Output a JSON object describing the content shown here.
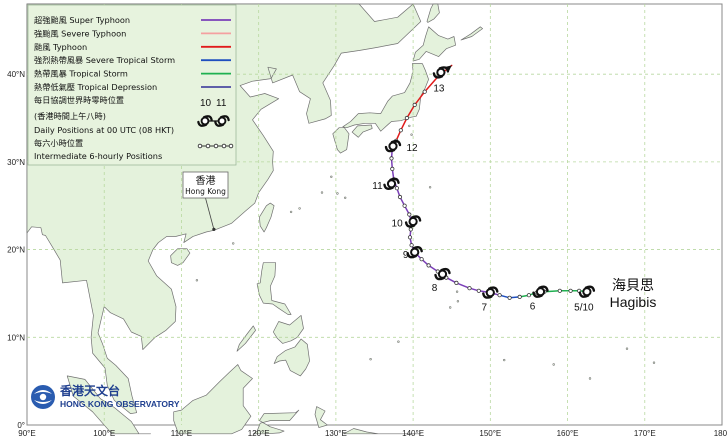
{
  "map": {
    "extent": {
      "lon_min": 90,
      "lon_max": 180,
      "lat_min": 0,
      "lat_max": 48
    },
    "gridline_color": "#b8d8a0",
    "ocean_color": "#ffffff",
    "land_color": "#e4f2dc",
    "coast_color": "#707070",
    "x_ticks": [
      {
        "lon": 90,
        "label": "90°E"
      },
      {
        "lon": 100,
        "label": "100°E"
      },
      {
        "lon": 110,
        "label": "110°E"
      },
      {
        "lon": 120,
        "label": "120°E"
      },
      {
        "lon": 130,
        "label": "130°E"
      },
      {
        "lon": 140,
        "label": "140°E"
      },
      {
        "lon": 150,
        "label": "150°E"
      },
      {
        "lon": 160,
        "label": "160°E"
      },
      {
        "lon": 170,
        "label": "170°E"
      },
      {
        "lon": 180,
        "label": "180°"
      }
    ],
    "y_ticks": [
      {
        "lat": 0,
        "label": "0°"
      },
      {
        "lat": 10,
        "label": "10°N"
      },
      {
        "lat": 20,
        "label": "20°N"
      },
      {
        "lat": 30,
        "label": "30°N"
      },
      {
        "lat": 40,
        "label": "40°N"
      }
    ]
  },
  "legend": {
    "intensity_classes": [
      {
        "label": "超強颱風 Super Typhoon",
        "color": "#7b3fb8"
      },
      {
        "label": "強颱風 Severe Typhoon",
        "color": "#f4a0a0"
      },
      {
        "label": "颱風  Typhoon",
        "color": "#e11b1b"
      },
      {
        "label": "強烈熱帶風暴 Severe Tropical Storm",
        "color": "#1f4fbf"
      },
      {
        "label": "熱帶風暴 Tropical Storm",
        "color": "#1fb050"
      },
      {
        "label": "熱帶低氣壓  Tropical Depression",
        "color": "#4a4aa0"
      }
    ],
    "daily_zh_line1": "每日協調世界時零時位置",
    "daily_zh_line2": "(香港時間上午八時)",
    "daily_en": "Daily Positions at 00 UTC (08 HKT)",
    "sample_day_1": "10",
    "sample_day_2": "11",
    "intermediate_zh": "每六小時位置",
    "intermediate_en": "Intermediate 6-hourly Positions"
  },
  "city": {
    "name_zh": "香港",
    "name_en": "Hong Kong",
    "lon": 114.2,
    "lat": 22.3
  },
  "storm": {
    "name_zh": "海貝思",
    "name_en": "Hagibis"
  },
  "track": [
    {
      "lon": 162.6,
      "lat": 15.2,
      "cls": "ts"
    },
    {
      "lon": 161.5,
      "lat": 15.3,
      "cls": "ts"
    },
    {
      "lon": 160.4,
      "lat": 15.3,
      "cls": "ts"
    },
    {
      "lon": 159.0,
      "lat": 15.3,
      "cls": "ts"
    },
    {
      "lon": 157.0,
      "lat": 15.2,
      "cls": "ts"
    },
    {
      "lon": 156.0,
      "lat": 15.1,
      "cls": "ts"
    },
    {
      "lon": 155.0,
      "lat": 14.8,
      "cls": "ts"
    },
    {
      "lon": 153.8,
      "lat": 14.6,
      "cls": "ts"
    },
    {
      "lon": 152.5,
      "lat": 14.5,
      "cls": "sts"
    },
    {
      "lon": 151.2,
      "lat": 14.8,
      "cls": "sts"
    },
    {
      "lon": 150.0,
      "lat": 15.1,
      "cls": "sty"
    },
    {
      "lon": 148.5,
      "lat": 15.3,
      "cls": "sty"
    },
    {
      "lon": 147.3,
      "lat": 15.6,
      "cls": "sty"
    },
    {
      "lon": 145.6,
      "lat": 16.2,
      "cls": "sty"
    },
    {
      "lon": 144.3,
      "lat": 16.8,
      "cls": "sty"
    },
    {
      "lon": 143.2,
      "lat": 17.5,
      "cls": "sty"
    },
    {
      "lon": 142.0,
      "lat": 18.2,
      "cls": "sty"
    },
    {
      "lon": 141.1,
      "lat": 18.9,
      "cls": "sty"
    },
    {
      "lon": 140.3,
      "lat": 19.6,
      "cls": "sty"
    },
    {
      "lon": 139.8,
      "lat": 20.5,
      "cls": "sty"
    },
    {
      "lon": 139.6,
      "lat": 21.4,
      "cls": "sty"
    },
    {
      "lon": 139.7,
      "lat": 22.3,
      "cls": "sty"
    },
    {
      "lon": 139.8,
      "lat": 23.1,
      "cls": "sty"
    },
    {
      "lon": 139.5,
      "lat": 24.0,
      "cls": "sty"
    },
    {
      "lon": 138.9,
      "lat": 25.0,
      "cls": "sty"
    },
    {
      "lon": 138.3,
      "lat": 26.0,
      "cls": "sty"
    },
    {
      "lon": 137.9,
      "lat": 27.0,
      "cls": "sty"
    },
    {
      "lon": 137.5,
      "lat": 28.0,
      "cls": "sty"
    },
    {
      "lon": 137.3,
      "lat": 29.2,
      "cls": "sty"
    },
    {
      "lon": 137.2,
      "lat": 30.4,
      "cls": "sty"
    },
    {
      "lon": 137.3,
      "lat": 31.5,
      "cls": "sty"
    },
    {
      "lon": 137.8,
      "lat": 32.4,
      "cls": "ty"
    },
    {
      "lon": 138.4,
      "lat": 33.6,
      "cls": "ty"
    },
    {
      "lon": 139.2,
      "lat": 35.0,
      "cls": "ty"
    },
    {
      "lon": 140.2,
      "lat": 36.5,
      "cls": "ty"
    },
    {
      "lon": 141.5,
      "lat": 38.0,
      "cls": "ty"
    },
    {
      "lon": 143.3,
      "lat": 39.8,
      "cls": "ty"
    },
    {
      "lon": 145.0,
      "lat": 41.0,
      "cls": "ty"
    }
  ],
  "daily_positions": [
    {
      "label": "5/10",
      "lon": 162.5,
      "lat": 15.2
    },
    {
      "label": "6",
      "lon": 156.5,
      "lat": 15.2
    },
    {
      "label": "7",
      "lon": 150.0,
      "lat": 15.1
    },
    {
      "label": "8",
      "lon": 143.8,
      "lat": 17.2
    },
    {
      "label": "9",
      "lon": 140.2,
      "lat": 19.7
    },
    {
      "label": "10",
      "lon": 140.0,
      "lat": 23.2
    },
    {
      "label": "11",
      "lon": 137.2,
      "lat": 27.5
    },
    {
      "label": "12",
      "lon": 137.4,
      "lat": 31.8
    },
    {
      "label": "13",
      "lon": 143.6,
      "lat": 40.2
    }
  ],
  "logo": {
    "name_zh": "香港天文台",
    "name_en": "HONG KONG OBSERVATORY"
  }
}
